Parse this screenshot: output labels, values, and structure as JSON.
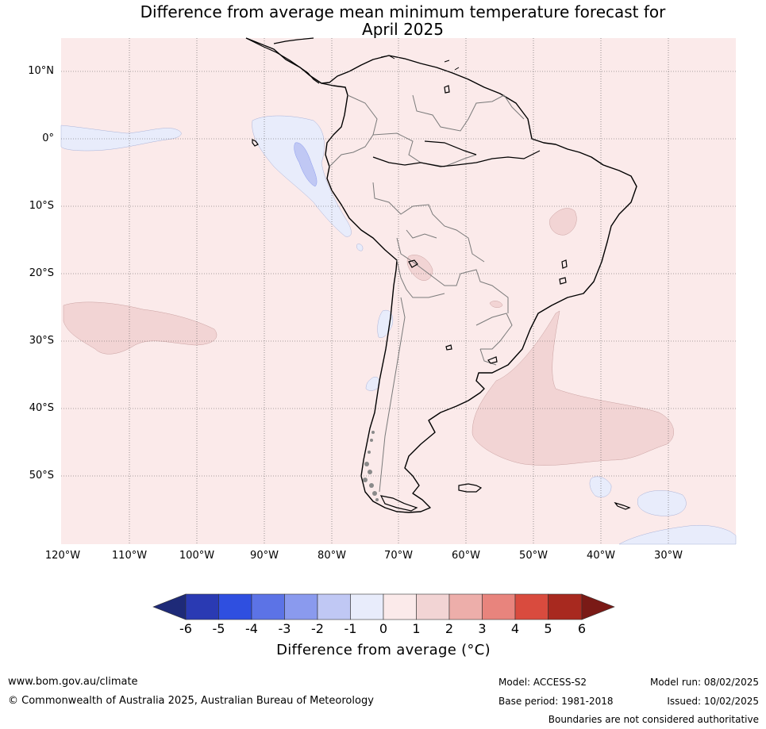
{
  "title_line1": "Difference from average mean minimum temperature forecast for",
  "title_line2": "April 2025",
  "latitude_labels": [
    "10°N",
    "0°",
    "10°S",
    "20°S",
    "30°S",
    "40°S",
    "50°S"
  ],
  "longitude_labels": [
    "120°W",
    "110°W",
    "100°W",
    "90°W",
    "80°W",
    "70°W",
    "60°W",
    "50°W",
    "40°W",
    "30°W"
  ],
  "colorbar": {
    "ticks": [
      "-6",
      "-5",
      "-4",
      "-3",
      "-2",
      "-1",
      "0",
      "1",
      "2",
      "3",
      "4",
      "5",
      "6"
    ],
    "colors": [
      "#1e2a78",
      "#2a3ab3",
      "#2f4fe0",
      "#5c73e6",
      "#8a9aee",
      "#c0c8f4",
      "#e8ecfb",
      "#fbeaea",
      "#f2d4d4",
      "#edaeaa",
      "#e8847d",
      "#d94b3e",
      "#a8291f",
      "#7a1a16"
    ],
    "label": "Difference from average (°C)"
  },
  "legend_colors": {
    "background_anomaly": "#fbeaea",
    "warm_anomaly": "#f2d4d4",
    "cool_anomaly": "#e8ecfb",
    "cooler_anomaly": "#c0c8f4"
  },
  "footer": {
    "website": "www.bom.gov.au/climate",
    "copyright": "© Commonwealth of Australia 2025, Australian Bureau of Meteorology",
    "model": "Model: ACCESS-S2",
    "base_period": "Base period: 1981-2018",
    "model_run": "Model run: 08/02/2025",
    "issued": "Issued: 10/02/2025",
    "disclaimer": "Boundaries are not considered authoritative"
  }
}
